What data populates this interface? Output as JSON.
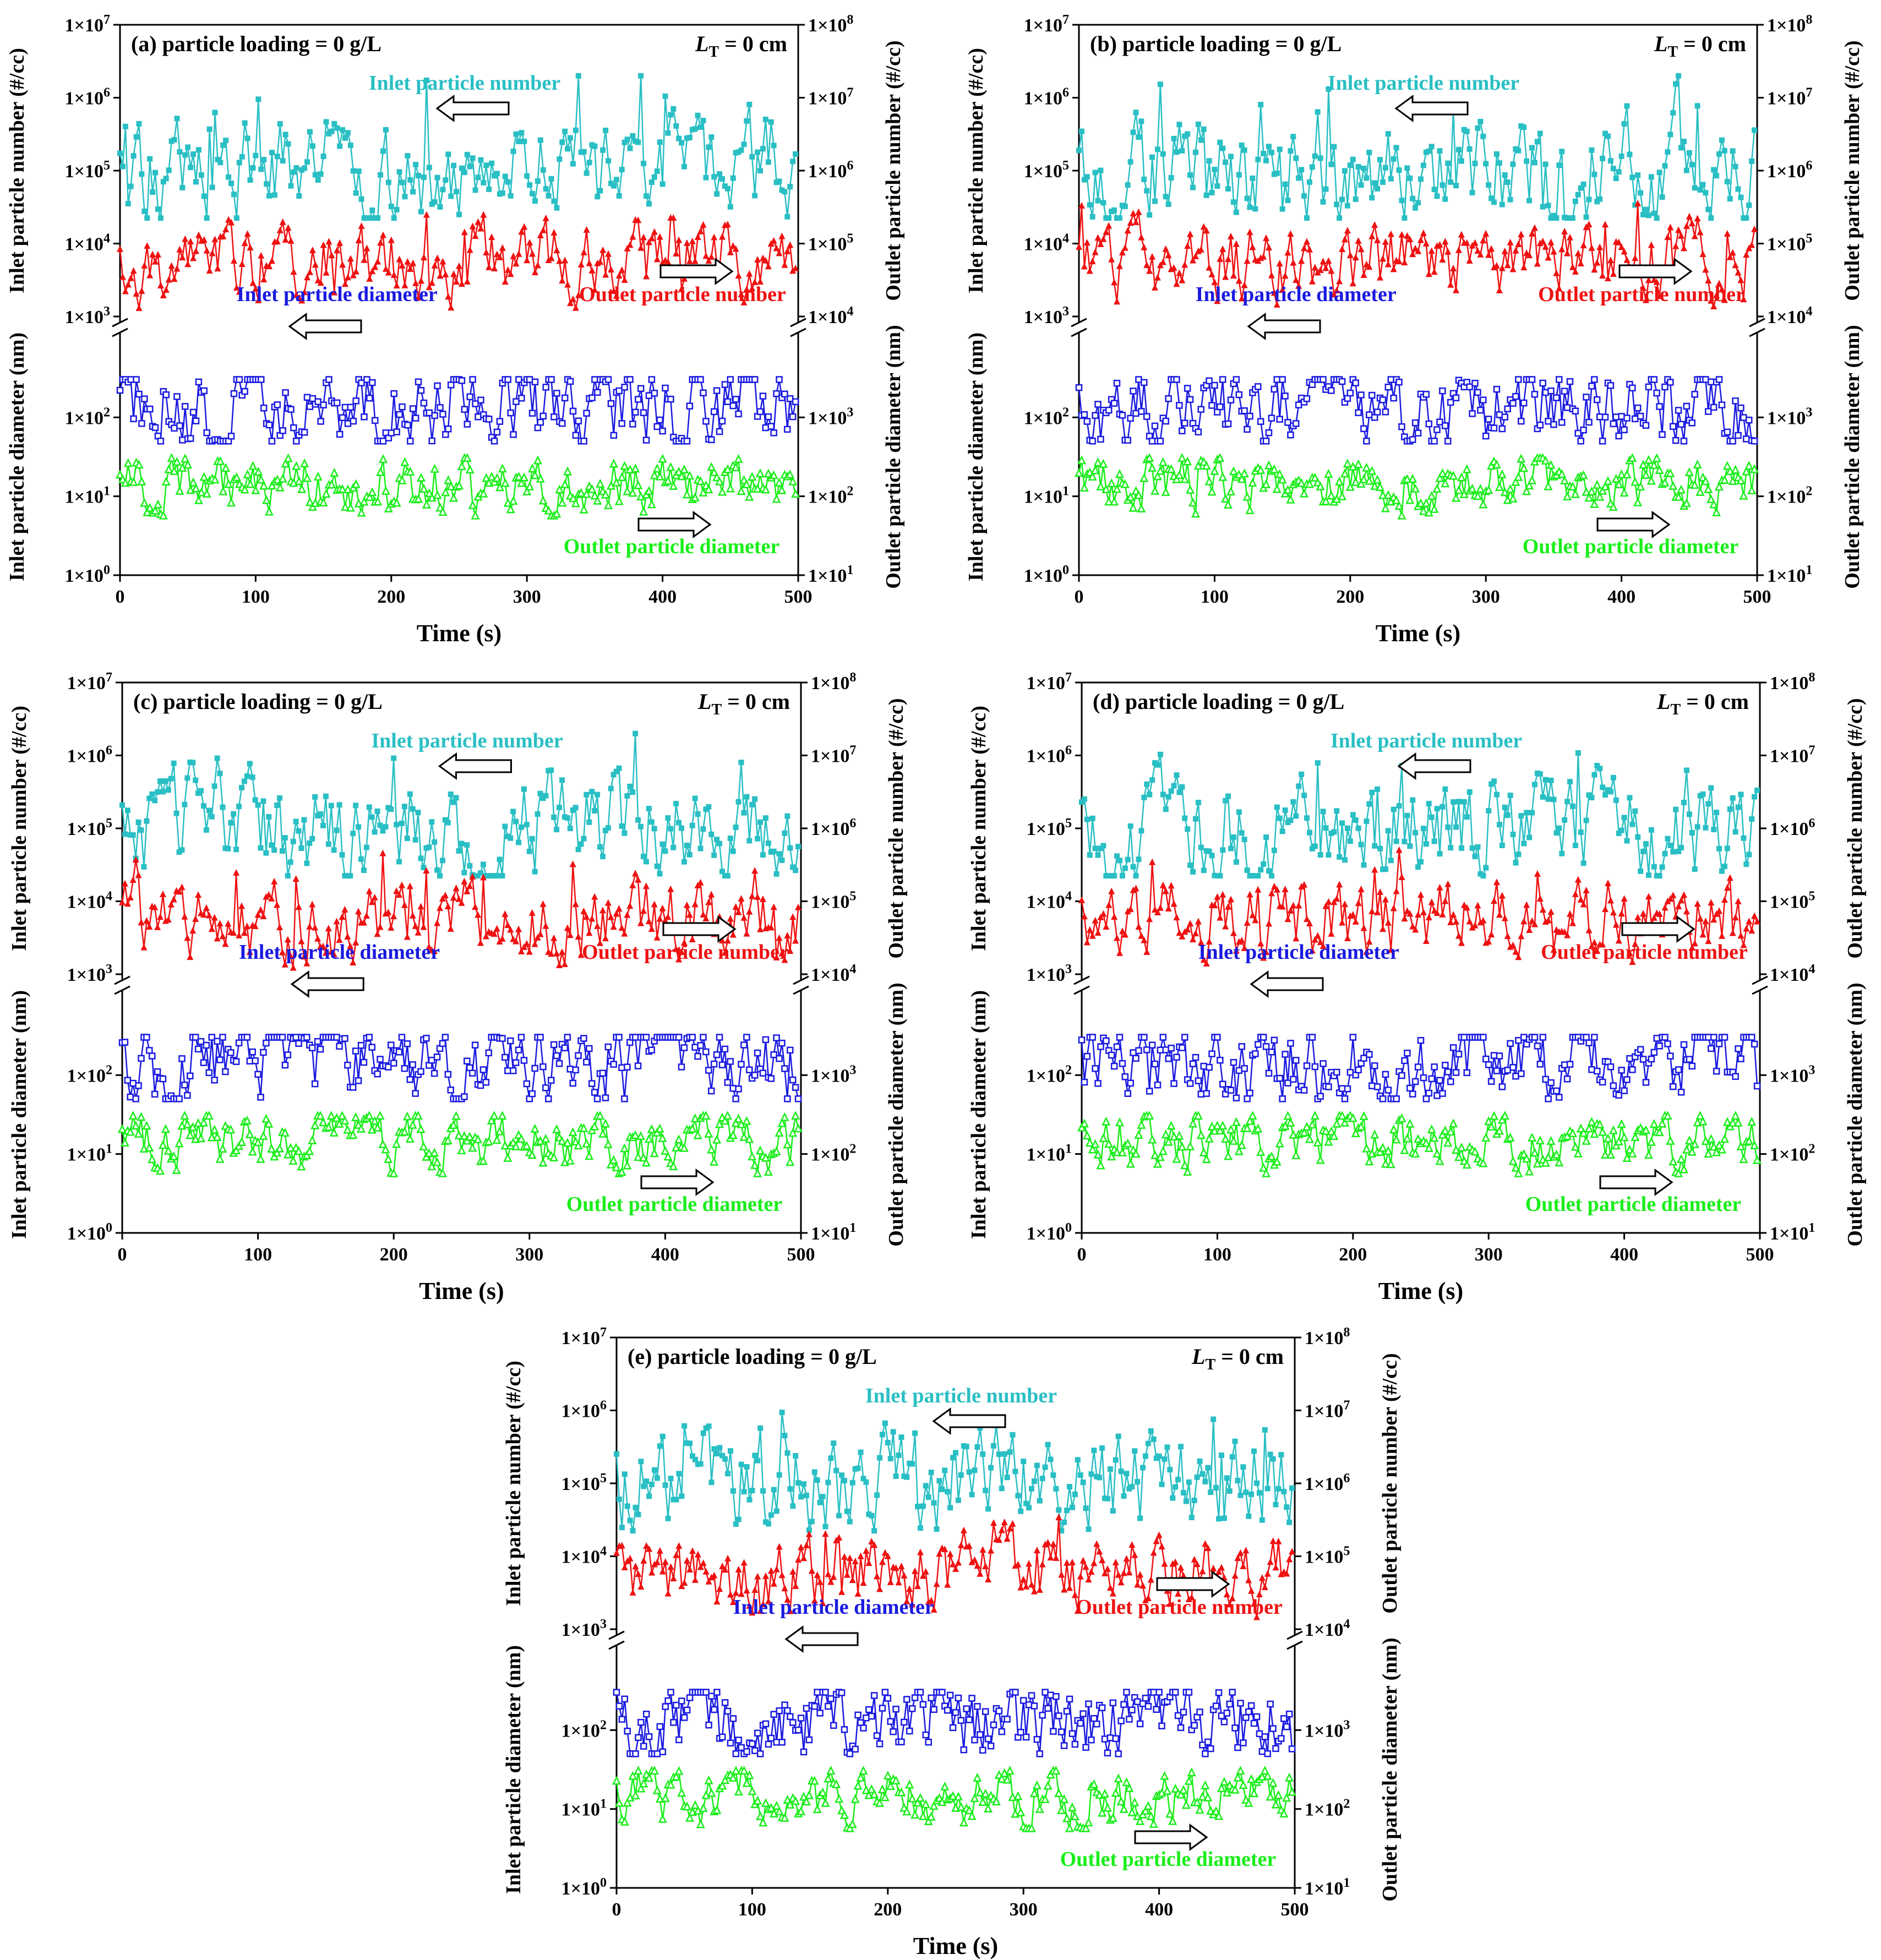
{
  "chart_data": {
    "colors": {
      "inlet_number": "#29bfc4",
      "outlet_number": "#ef1111",
      "inlet_diameter": "#1a1ae0",
      "outlet_diameter": "#19ee19"
    },
    "panels": [
      {
        "id": "a",
        "title": "(a) particle loading = 0 g/L",
        "lt_label": "L",
        "lt_sub": "T",
        "lt_value": " = 0 cm",
        "arrow_inlet_number": "left",
        "arrow_outlet_number": "right",
        "arrow_inlet_diameter": "left",
        "arrow_outlet_diameter": "right"
      },
      {
        "id": "b",
        "title": "(b) particle loading = 0 g/L",
        "lt_label": "L",
        "lt_sub": "T",
        "lt_value": " = 0 cm",
        "arrow_inlet_number": "left",
        "arrow_outlet_number": "right",
        "arrow_inlet_diameter": "left",
        "arrow_outlet_diameter": "right"
      },
      {
        "id": "c",
        "title": "(c) particle loading = 0 g/L",
        "lt_label": "L",
        "lt_sub": "T",
        "lt_value": " = 0 cm",
        "arrow_inlet_number": "left",
        "arrow_outlet_number": "right",
        "arrow_inlet_diameter": "left",
        "arrow_outlet_diameter": "right"
      },
      {
        "id": "d",
        "title": "(d) particle loading = 0 g/L",
        "lt_label": "L",
        "lt_sub": "T",
        "lt_value": " = 0 cm",
        "arrow_inlet_number": "left",
        "arrow_outlet_number": "right",
        "arrow_inlet_diameter": "left",
        "arrow_outlet_diameter": "right"
      },
      {
        "id": "e",
        "title": "(e) particle loading = 0 g/L",
        "lt_label": "L",
        "lt_sub": "T",
        "lt_value": " = 0 cm",
        "arrow_inlet_number": "left",
        "arrow_outlet_number": "right",
        "arrow_inlet_diameter": "left",
        "arrow_outlet_diameter": "right"
      }
    ],
    "shared": {
      "type": "line",
      "xlabel": "Time (s)",
      "xlim": [
        0,
        500
      ],
      "xticks": [
        0,
        100,
        200,
        300,
        400,
        500
      ],
      "left_upper_axis": {
        "label": "Inlet particle number (#/cc)",
        "scale": "log",
        "range": [
          1000,
          10000000
        ],
        "ticks": [
          "1×10^3",
          "1×10^4",
          "1×10^5",
          "1×10^6",
          "1×10^7"
        ]
      },
      "left_lower_axis": {
        "label": "Inlet particle diameter (nm)",
        "scale": "log",
        "range": [
          1,
          1000
        ],
        "ticks": [
          "1×10^0",
          "1×10^1",
          "1×10^2"
        ]
      },
      "right_upper_axis": {
        "label": "Outlet particle number (#/cc)",
        "scale": "log",
        "range": [
          10000,
          100000000
        ],
        "ticks": [
          "1×10^4",
          "1×10^5",
          "1×10^6",
          "1×10^7",
          "1×10^8"
        ]
      },
      "right_lower_axis": {
        "label": "Outlet particle diameter (nm)",
        "scale": "log",
        "range": [
          10,
          10000
        ],
        "ticks": [
          "1×10^1",
          "1×10^2",
          "1×10^3"
        ]
      },
      "series_labels": {
        "inlet_number": "Inlet particle number",
        "outlet_number": "Outlet particle number",
        "inlet_diameter": "Inlet particle diameter",
        "outlet_diameter": "Outlet particle diameter"
      },
      "series_typical": {
        "inlet_number": {
          "center": 100000,
          "min": 30000,
          "max": 2000000,
          "axis": "left_upper"
        },
        "outlet_number": {
          "center": 50000,
          "min": 8000,
          "max": 500000,
          "axis": "right_upper"
        },
        "inlet_diameter": {
          "center": 150,
          "min": 50,
          "max": 300,
          "axis": "left_lower"
        },
        "outlet_diameter": {
          "center": 150,
          "min": 60,
          "max": 300,
          "axis": "right_lower"
        }
      }
    }
  }
}
